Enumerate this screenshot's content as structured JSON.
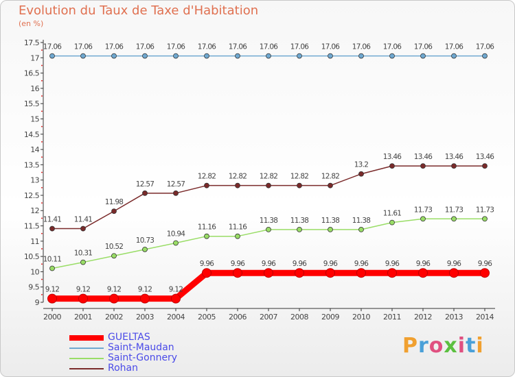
{
  "chart_data": {
    "type": "line",
    "title": "Evolution du Taux de Taxe d'Habitation",
    "subtitle": "(en %)",
    "xlabel": "",
    "ylabel": "",
    "x": [
      "2000",
      "2001",
      "2002",
      "2003",
      "2004",
      "2005",
      "2006",
      "2007",
      "2008",
      "2009",
      "2010",
      "2011",
      "2012",
      "2013",
      "2014"
    ],
    "ylim": [
      9,
      17.5
    ],
    "yticks": [
      9,
      9.5,
      10,
      10.5,
      11,
      11.5,
      12,
      12.5,
      13,
      13.5,
      14,
      14.5,
      15,
      15.5,
      16,
      16.5,
      17,
      17.5
    ],
    "ytick_labels": [
      "9",
      "9.5",
      "10",
      "10.5",
      "11",
      "11.5",
      "12",
      "12.5",
      "13",
      "13.5",
      "14",
      "14.5",
      "15",
      "15.5",
      "16",
      "16.5",
      "17",
      "17.5"
    ],
    "grid": false,
    "legend_position": "bottom-left",
    "series": [
      {
        "name": "GUELTAS",
        "color": "#ff0000",
        "values": [
          9.12,
          9.12,
          9.12,
          9.12,
          9.12,
          9.96,
          9.96,
          9.96,
          9.96,
          9.96,
          9.96,
          9.96,
          9.96,
          9.96,
          9.96
        ],
        "labels": [
          "9.12",
          "9.12",
          "9.12",
          "9.12",
          "9.12",
          "9.96",
          "9.96",
          "9.96",
          "9.96",
          "9.96",
          "9.96",
          "9.96",
          "9.96",
          "9.96",
          "9.96"
        ]
      },
      {
        "name": "Saint-Maudan",
        "color": "#6fa8d0",
        "values": [
          17.06,
          17.06,
          17.06,
          17.06,
          17.06,
          17.06,
          17.06,
          17.06,
          17.06,
          17.06,
          17.06,
          17.06,
          17.06,
          17.06,
          17.06
        ],
        "labels": [
          "17.06",
          "17.06",
          "17.06",
          "17.06",
          "17.06",
          "17.06",
          "17.06",
          "17.06",
          "17.06",
          "17.06",
          "17.06",
          "17.06",
          "17.06",
          "17.06",
          "17.06"
        ]
      },
      {
        "name": "Saint-Gonnery",
        "color": "#99dd66",
        "values": [
          10.11,
          10.31,
          10.52,
          10.73,
          10.94,
          11.16,
          11.16,
          11.38,
          11.38,
          11.38,
          11.38,
          11.61,
          11.73,
          11.73,
          11.73
        ],
        "labels": [
          "10.11",
          "10.31",
          "10.52",
          "10.73",
          "10.94",
          "11.16",
          "11.16",
          "11.38",
          "11.38",
          "11.38",
          "11.38",
          "11.61",
          "11.73",
          "11.73",
          "11.73"
        ]
      },
      {
        "name": "Rohan",
        "color": "#7a2a2a",
        "values": [
          11.41,
          11.41,
          11.98,
          12.57,
          12.57,
          12.82,
          12.82,
          12.82,
          12.82,
          12.82,
          13.2,
          13.46,
          13.46,
          13.46,
          13.46
        ],
        "labels": [
          "11.41",
          "11.41",
          "11.98",
          "12.57",
          "12.57",
          "12.82",
          "12.82",
          "12.82",
          "12.82",
          "12.82",
          "13.2",
          "13.46",
          "13.46",
          "13.46",
          "13.46"
        ]
      }
    ]
  },
  "logo": {
    "text": "Proxiti",
    "colors": [
      "#f0a030",
      "#4aa0d8",
      "#e05080",
      "#5cc040",
      "#e05080",
      "#4aa0d8",
      "#f0a030"
    ]
  }
}
